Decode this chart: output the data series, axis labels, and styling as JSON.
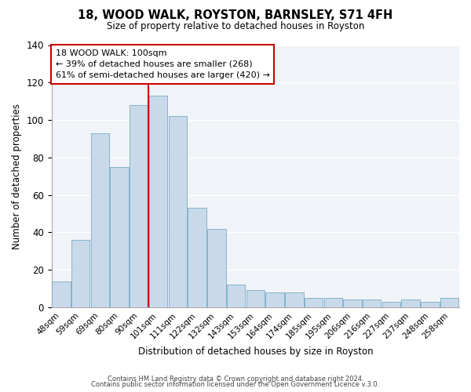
{
  "title": "18, WOOD WALK, ROYSTON, BARNSLEY, S71 4FH",
  "subtitle": "Size of property relative to detached houses in Royston",
  "xlabel": "Distribution of detached houses by size in Royston",
  "ylabel": "Number of detached properties",
  "bar_color": "#c8daea",
  "bar_edge_color": "#7aaac8",
  "categories": [
    "48sqm",
    "59sqm",
    "69sqm",
    "80sqm",
    "90sqm",
    "101sqm",
    "111sqm",
    "122sqm",
    "132sqm",
    "143sqm",
    "153sqm",
    "164sqm",
    "174sqm",
    "185sqm",
    "195sqm",
    "206sqm",
    "216sqm",
    "227sqm",
    "237sqm",
    "248sqm",
    "258sqm"
  ],
  "values": [
    14,
    36,
    93,
    75,
    108,
    113,
    102,
    53,
    42,
    12,
    9,
    8,
    8,
    5,
    5,
    4,
    4,
    3,
    4,
    3,
    5
  ],
  "ylim": [
    0,
    140
  ],
  "yticks": [
    0,
    20,
    40,
    60,
    80,
    100,
    120,
    140
  ],
  "vline_index": 5,
  "vline_color": "#cc0000",
  "annotation_title": "18 WOOD WALK: 100sqm",
  "annotation_line1": "← 39% of detached houses are smaller (268)",
  "annotation_line2": "61% of semi-detached houses are larger (420) →",
  "annotation_box_color": "#ffffff",
  "annotation_box_edge": "#cc0000",
  "footer1": "Contains HM Land Registry data © Crown copyright and database right 2024.",
  "footer2": "Contains public sector information licensed under the Open Government Licence v.3.0.",
  "bg_color": "#f0f4f8"
}
